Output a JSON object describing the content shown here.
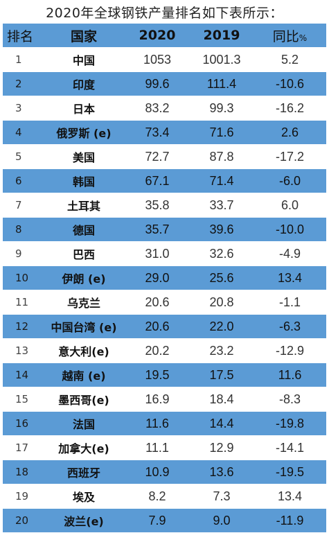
{
  "title": "2020年全球钢铁产量排名如下表所示：",
  "headers": {
    "rank": "排名",
    "country": "国家",
    "y2020": "2020",
    "y2019": "2019",
    "yoy": "同比",
    "yoy_unit": "%"
  },
  "rows": [
    {
      "rank": "1",
      "country": "中国",
      "y2020": "1053",
      "y2019": "1001.3",
      "yoy": "5.2"
    },
    {
      "rank": "2",
      "country": "印度",
      "y2020": "99.6",
      "y2019": "111.4",
      "yoy": "-10.6"
    },
    {
      "rank": "3",
      "country": "日本",
      "y2020": "83.2",
      "y2019": "99.3",
      "yoy": "-16.2"
    },
    {
      "rank": "4",
      "country": "俄罗斯 (e)",
      "y2020": "73.4",
      "y2019": "71.6",
      "yoy": "2.6"
    },
    {
      "rank": "5",
      "country": "美国",
      "y2020": "72.7",
      "y2019": "87.8",
      "yoy": "-17.2"
    },
    {
      "rank": "6",
      "country": "韩国",
      "y2020": "67.1",
      "y2019": "71.4",
      "yoy": "-6.0"
    },
    {
      "rank": "7",
      "country": "土耳其",
      "y2020": "35.8",
      "y2019": "33.7",
      "yoy": "6.0"
    },
    {
      "rank": "8",
      "country": "德国",
      "y2020": "35.7",
      "y2019": "39.6",
      "yoy": "-10.0"
    },
    {
      "rank": "9",
      "country": "巴西",
      "y2020": "31.0",
      "y2019": "32.6",
      "yoy": "-4.9"
    },
    {
      "rank": "10",
      "country": "伊朗 (e)",
      "y2020": "29.0",
      "y2019": "25.6",
      "yoy": "13.4"
    },
    {
      "rank": "11",
      "country": "乌克兰",
      "y2020": "20.6",
      "y2019": "20.8",
      "yoy": "-1.1"
    },
    {
      "rank": "12",
      "country": "中国台湾 (e)",
      "y2020": "20.6",
      "y2019": "22.0",
      "yoy": "-6.3"
    },
    {
      "rank": "13",
      "country": "意大利(e)",
      "y2020": "20.2",
      "y2019": "23.2",
      "yoy": "-12.9"
    },
    {
      "rank": "14",
      "country": "越南 (e)",
      "y2020": "19.5",
      "y2019": "17.5",
      "yoy": "11.6"
    },
    {
      "rank": "15",
      "country": "墨西哥(e)",
      "y2020": "16.9",
      "y2019": "18.4",
      "yoy": "-8.3"
    },
    {
      "rank": "16",
      "country": "法国",
      "y2020": "11.6",
      "y2019": "14.4",
      "yoy": "-19.8"
    },
    {
      "rank": "17",
      "country": "加拿大(e)",
      "y2020": "11.1",
      "y2019": "12.9",
      "yoy": "-14.1"
    },
    {
      "rank": "18",
      "country": "西班牙",
      "y2020": "10.9",
      "y2019": "13.6",
      "yoy": "-19.5"
    },
    {
      "rank": "19",
      "country": "埃及",
      "y2020": "8.2",
      "y2019": "7.3",
      "yoy": "13.4"
    },
    {
      "rank": "20",
      "country": "波兰(e)",
      "y2020": "7.9",
      "y2019": "9.0",
      "yoy": "-11.9"
    }
  ],
  "colors": {
    "stripe": "#5b9bd5",
    "background": "#ffffff"
  }
}
